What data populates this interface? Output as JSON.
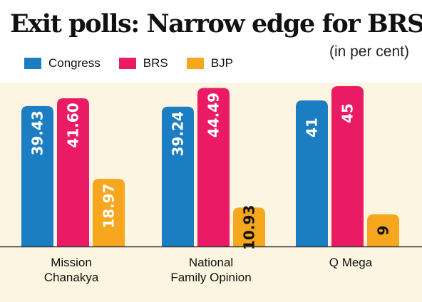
{
  "title": "Exit polls: Narrow edge for BRS",
  "subtitle": "(in per cent)",
  "colors": {
    "Congress": "#1b7ec2",
    "BRS": "#ea1a64",
    "BJP": "#f6a71d",
    "background": "#fcf5e2",
    "label_light": "#ffffff",
    "label_dark": "#111111"
  },
  "legend": [
    {
      "name": "Congress",
      "color": "#1b7ec2"
    },
    {
      "name": "BRS",
      "color": "#ea1a64"
    },
    {
      "name": "BJP",
      "color": "#f6a71d"
    }
  ],
  "chart_data": {
    "type": "bar",
    "title": "Exit polls: Narrow edge for BRS",
    "subtitle": "(in per cent)",
    "categories": [
      [
        "Mission",
        "Chanakya"
      ],
      [
        "National",
        "Family Opinion"
      ],
      [
        "Q Mega"
      ]
    ],
    "series": [
      {
        "name": "Congress",
        "values": [
          39.43,
          39.24,
          41
        ],
        "labels": [
          "39.43",
          "39.24",
          "41"
        ]
      },
      {
        "name": "BRS",
        "values": [
          41.6,
          44.49,
          45
        ],
        "labels": [
          "41.60",
          "44.49",
          "45"
        ]
      },
      {
        "name": "BJP",
        "values": [
          18.97,
          10.93,
          9
        ],
        "labels": [
          "18.97",
          "10.93",
          "9"
        ]
      }
    ],
    "xlabel": "",
    "ylabel": "",
    "ylim": [
      0,
      46
    ],
    "grid": false,
    "legend_position": "top-left"
  }
}
